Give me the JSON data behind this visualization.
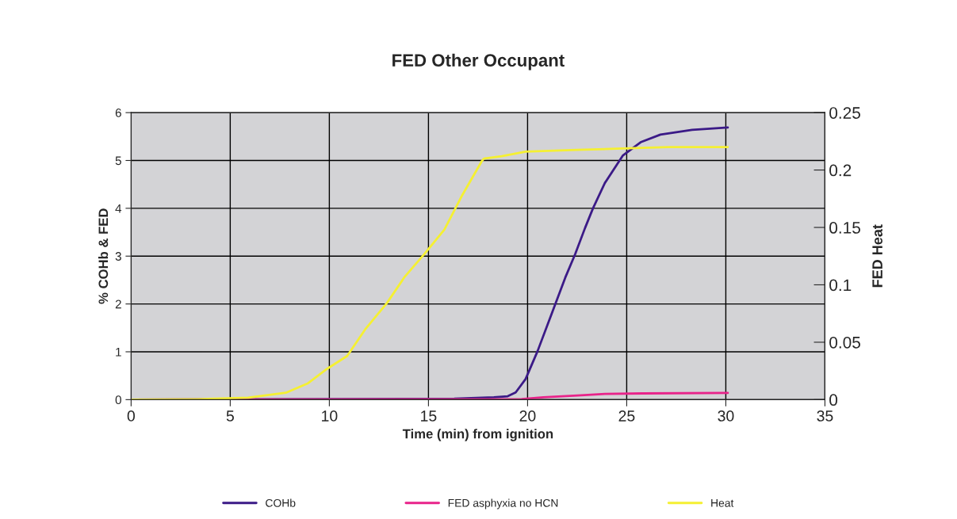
{
  "chart_data": {
    "type": "line",
    "title": "FED Other Occupant",
    "xlabel": "Time (min) from ignition",
    "ylabel": "% COHb & FED",
    "y2label": "FED Heat",
    "xlim": [
      0,
      35
    ],
    "xticks": [
      0,
      5,
      10,
      15,
      20,
      25,
      30,
      35
    ],
    "ylim": [
      0,
      6
    ],
    "yticks": [
      0,
      1,
      2,
      3,
      4,
      5,
      6
    ],
    "y2lim": [
      0,
      0.25
    ],
    "y2ticks": [
      0,
      0.05,
      0.1,
      0.15,
      0.2,
      0.25
    ],
    "grid": true,
    "legend": "bottom",
    "marker": "none",
    "line_style": "solid",
    "series": [
      {
        "name": "COHb",
        "color": "#3b1a87",
        "x": [
          0,
          16.3,
          18.3,
          19.0,
          19.4,
          19.9,
          20.5,
          21.2,
          21.9,
          22.4,
          22.9,
          23.3,
          23.9,
          24.8,
          25.7,
          26.7,
          28.3,
          30.1
        ],
        "values": [
          0,
          0.02,
          0.05,
          0.07,
          0.15,
          0.43,
          1.01,
          1.78,
          2.55,
          3.04,
          3.59,
          4.0,
          4.53,
          5.1,
          5.38,
          5.54,
          5.64,
          5.69
        ]
      },
      {
        "name": "FED asphyxia no HCN",
        "color": "#e8238a",
        "x": [
          0,
          19.7,
          20.8,
          22.7,
          23.9,
          25.8,
          30.1
        ],
        "values": [
          0,
          0.01,
          0.05,
          0.09,
          0.12,
          0.13,
          0.14
        ]
      },
      {
        "name": "Heat",
        "color": "#f5f032",
        "axis": "y2",
        "x": [
          0,
          3.3,
          5.9,
          7.8,
          8.9,
          9.9,
          10.9,
          11.8,
          12.9,
          13.8,
          14.8,
          15.8,
          16.7,
          17.7,
          17.8,
          18.7,
          19.9,
          22.5,
          25.1,
          27.1,
          30.1
        ],
        "values": [
          0,
          0.0004,
          0.0017,
          0.006,
          0.014,
          0.027,
          0.038,
          0.061,
          0.084,
          0.107,
          0.127,
          0.148,
          0.178,
          0.208,
          0.21,
          0.212,
          0.216,
          0.2175,
          0.219,
          0.22,
          0.22
        ]
      }
    ]
  }
}
